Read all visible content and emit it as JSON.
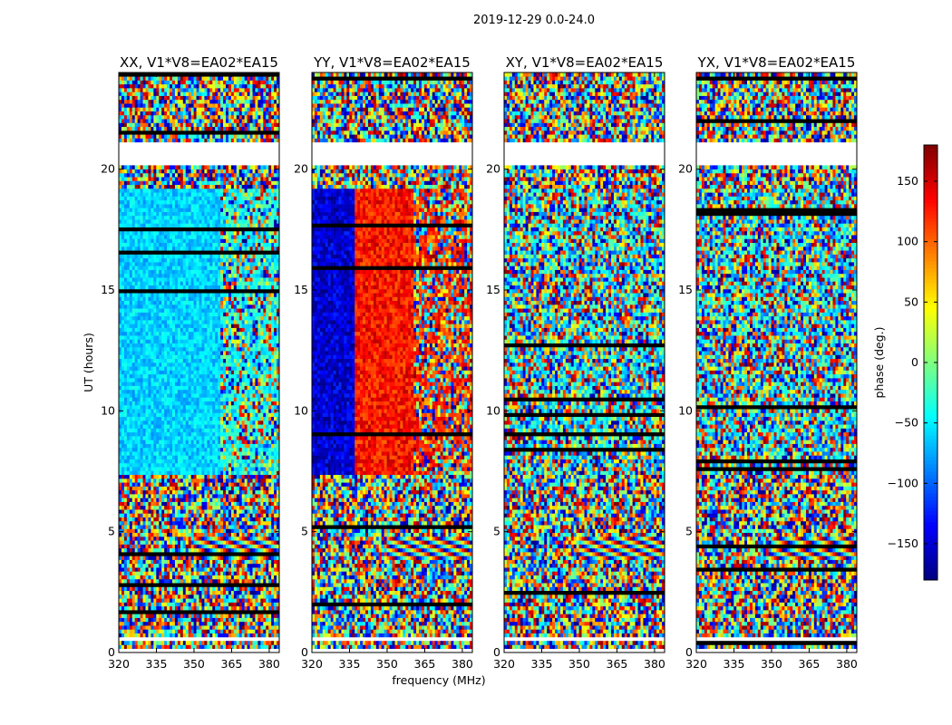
{
  "chart_data": {
    "type": "heatmap",
    "suptitle": "2019-12-29 0.0-24.0",
    "xlabel": "frequency (MHz)",
    "ylabel": "UT (hours)",
    "x_range": [
      320,
      384
    ],
    "y_range": [
      0,
      24
    ],
    "x_ticks": [
      "320",
      "335",
      "350",
      "365",
      "380"
    ],
    "x_tick_values": [
      320,
      335,
      350,
      365,
      380
    ],
    "y_ticks": [
      "0",
      "5",
      "10",
      "15",
      "20"
    ],
    "y_tick_values": [
      0,
      5,
      10,
      15,
      20
    ],
    "colorbar": {
      "label": "phase (deg.)",
      "range": [
        -180,
        180
      ],
      "ticks": [
        "−150",
        "−100",
        "−50",
        "0",
        "50",
        "100",
        "150"
      ],
      "tick_values": [
        -150,
        -100,
        -50,
        0,
        50,
        100,
        150
      ],
      "colormap": "jet"
    },
    "gaps_ut_hours": [
      [
        0.0,
        0.15
      ],
      [
        0.45,
        0.7
      ],
      [
        20.2,
        21.1
      ]
    ],
    "panels": [
      {
        "title": "XX, V1*V8=EA02*EA15",
        "pattern": "xx"
      },
      {
        "title": "YY, V1*V8=EA02*EA15",
        "pattern": "yy"
      },
      {
        "title": "XY, V1*V8=EA02*EA15",
        "pattern": "xy"
      },
      {
        "title": "YX, V1*V8=EA02*EA15",
        "pattern": "yx"
      }
    ]
  }
}
